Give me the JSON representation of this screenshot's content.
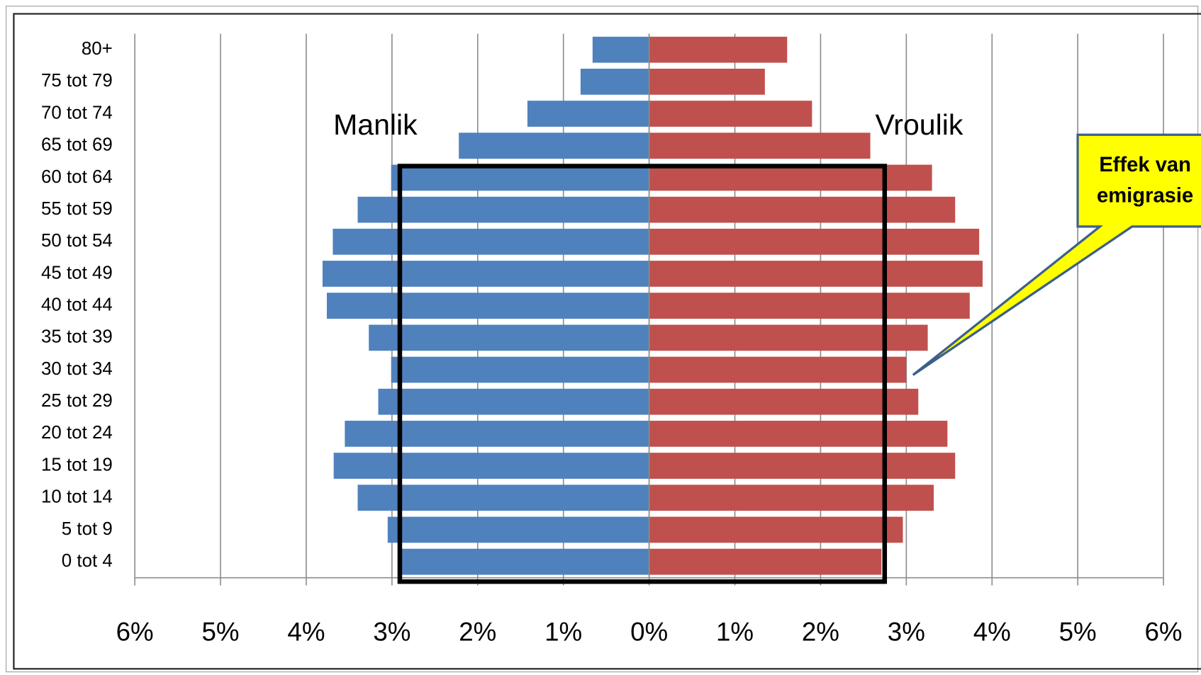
{
  "chart_data": {
    "type": "pyramid",
    "categories": [
      "80+",
      "75 tot 79",
      "70 tot 74",
      "65 tot 69",
      "60 tot 64",
      "55 tot 59",
      "50 tot 54",
      "45 tot 49",
      "40 tot 44",
      "35 tot 39",
      "30 tot 34",
      "25 tot 29",
      "20 tot 24",
      "15 tot 19",
      "10 tot 14",
      "5 tot 9",
      "0 tot 4"
    ],
    "series": [
      {
        "name": "Manlik",
        "color": "#4f81bd",
        "values": [
          -0.66,
          -0.8,
          -1.42,
          -2.22,
          -3.01,
          -3.4,
          -3.69,
          -3.81,
          -3.76,
          -3.27,
          -3.01,
          -3.16,
          -3.55,
          -3.68,
          -3.4,
          -3.05,
          -2.9
        ]
      },
      {
        "name": "Vroulik",
        "color": "#c0504d",
        "values": [
          1.61,
          1.35,
          1.9,
          2.58,
          3.3,
          3.57,
          3.85,
          3.89,
          3.74,
          3.25,
          3.0,
          3.14,
          3.48,
          3.57,
          3.32,
          2.96,
          2.71
        ]
      }
    ],
    "xlim": [
      -6,
      6
    ],
    "xticks": [
      {
        "value": -6,
        "label": "6%"
      },
      {
        "value": -5,
        "label": "5%"
      },
      {
        "value": -4,
        "label": "4%"
      },
      {
        "value": -3,
        "label": "3%"
      },
      {
        "value": -2,
        "label": "2%"
      },
      {
        "value": -1,
        "label": "1%"
      },
      {
        "value": 0,
        "label": "0%"
      },
      {
        "value": 1,
        "label": "1%"
      },
      {
        "value": 2,
        "label": "2%"
      },
      {
        "value": 3,
        "label": "3%"
      },
      {
        "value": 4,
        "label": "4%"
      },
      {
        "value": 5,
        "label": "5%"
      },
      {
        "value": 6,
        "label": "6%"
      }
    ],
    "grid": true,
    "callout": [
      "Effek van",
      "emigrasie"
    ]
  }
}
